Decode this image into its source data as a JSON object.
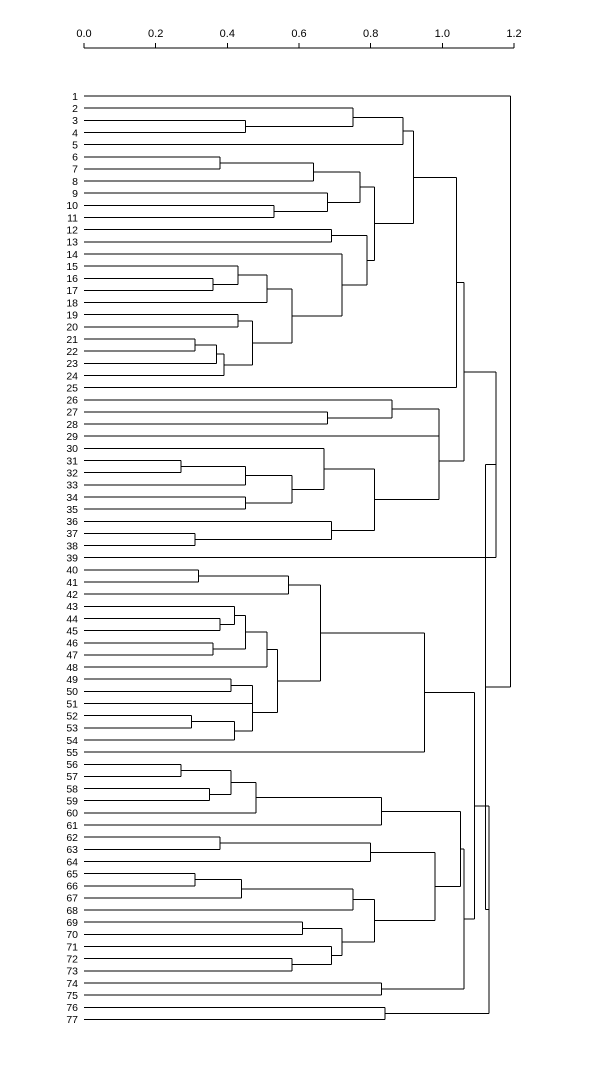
{
  "chart_data": {
    "type": "dendrogram",
    "title": "",
    "xlabel": "",
    "ylabel": "",
    "xlim": [
      0,
      1.2
    ],
    "x_ticks": [
      0.0,
      0.2,
      0.4,
      0.6,
      0.8,
      1.0,
      1.2
    ],
    "x_tick_labels": [
      "0.0",
      "0.2",
      "0.4",
      "0.6",
      "0.8",
      "1.0",
      "1.2"
    ],
    "axis_position": "top",
    "leaves": [
      "1",
      "2",
      "3",
      "4",
      "5",
      "6",
      "7",
      "8",
      "9",
      "10",
      "11",
      "12",
      "13",
      "14",
      "15",
      "16",
      "17",
      "18",
      "19",
      "20",
      "21",
      "22",
      "23",
      "24",
      "25",
      "26",
      "27",
      "28",
      "29",
      "30",
      "31",
      "32",
      "33",
      "34",
      "35",
      "36",
      "37",
      "38",
      "39",
      "40",
      "41",
      "42",
      "43",
      "44",
      "45",
      "46",
      "47",
      "48",
      "49",
      "50",
      "51",
      "52",
      "53",
      "54",
      "55",
      "56",
      "57",
      "58",
      "59",
      "60",
      "61",
      "62",
      "63",
      "64",
      "65",
      "66",
      "67",
      "68",
      "69",
      "70",
      "71",
      "72",
      "73",
      "74",
      "75",
      "76",
      "77"
    ],
    "tree": [
      1.19,
      [
        1
      ],
      [
        1.12,
        [
          1.15,
          [
            1.06,
            [
              1.04,
              [
                0.92,
                [
                  0.89,
                  [
                    0.75,
                    [
                      2
                    ],
                    [
                      0.45,
                      [
                        3
                      ],
                      [
                        4
                      ]
                    ]
                  ],
                  [
                    5
                  ]
                ],
                [
                  0.81,
                  [
                    0.77,
                    [
                      0.64,
                      [
                        0.38,
                        [
                          6
                        ],
                        [
                          7
                        ]
                      ],
                      [
                        8
                      ]
                    ],
                    [
                      0.68,
                      [
                        9
                      ],
                      [
                        0.53,
                        [
                          10
                        ],
                        [
                          11
                        ]
                      ]
                    ]
                  ],
                  [
                    0.79,
                    [
                      0.69,
                      [
                        12
                      ],
                      [
                        13
                      ]
                    ],
                    [
                      0.72,
                      [
                        14
                      ],
                      [
                        0.58,
                        [
                          0.51,
                          [
                            0.43,
                            [
                              15
                            ],
                            [
                              0.36,
                              [
                                16
                              ],
                              [
                                17
                              ]
                            ]
                          ],
                          [
                            18
                          ]
                        ],
                        [
                          0.47,
                          [
                            0.43,
                            [
                              19
                            ],
                            [
                              20
                            ]
                          ],
                          [
                            0.39,
                            [
                              0.37,
                              [
                                0.31,
                                [
                                  21
                                ],
                                [
                                  22
                                ]
                              ],
                              [
                                23
                              ]
                            ],
                            [
                              24
                            ]
                          ]
                        ]
                      ]
                    ]
                  ]
                ]
              ],
              [
                25
              ]
            ],
            [
              0.99,
              [
                0.99,
                [
                  0.86,
                  [
                    26
                  ],
                  [
                    0.68,
                    [
                      27
                    ],
                    [
                      28
                    ]
                  ]
                ],
                [
                  29
                ]
              ],
              [
                0.81,
                [
                  0.67,
                  [
                    30
                  ],
                  [
                    0.58,
                    [
                      0.45,
                      [
                        0.27,
                        [
                          31
                        ],
                        [
                          32
                        ]
                      ],
                      [
                        33
                      ]
                    ],
                    [
                      0.45,
                      [
                        34
                      ],
                      [
                        35
                      ]
                    ]
                  ]
                ],
                [
                  0.69,
                  [
                    36
                  ],
                  [
                    0.31,
                    [
                      37
                    ],
                    [
                      38
                    ]
                  ]
                ]
              ]
            ]
          ],
          [
            39
          ]
        ],
        [
          1.13,
          [
            1.09,
            [
              0.95,
              [
                0.66,
                [
                  0.57,
                  [
                    0.32,
                    [
                      40
                    ],
                    [
                      41
                    ]
                  ],
                  [
                    42
                  ]
                ],
                [
                  0.54,
                  [
                    0.51,
                    [
                      0.45,
                      [
                        0.42,
                        [
                          43
                        ],
                        [
                          0.38,
                          [
                            44
                          ],
                          [
                            45
                          ]
                        ]
                      ],
                      [
                        0.36,
                        [
                          46
                        ],
                        [
                          47
                        ]
                      ]
                    ],
                    [
                      48
                    ]
                  ],
                  [
                    0.47,
                    [
                      0.47,
                      [
                        0.41,
                        [
                          49
                        ],
                        [
                          50
                        ]
                      ],
                      [
                        51
                      ]
                    ],
                    [
                      0.42,
                      [
                        0.3,
                        [
                          52
                        ],
                        [
                          53
                        ]
                      ],
                      [
                        54
                      ]
                    ]
                  ]
                ]
              ],
              [
                55
              ]
            ],
            [
              1.06,
              [
                1.05,
                [
                  0.83,
                  [
                    0.48,
                    [
                      0.41,
                      [
                        0.27,
                        [
                          56
                        ],
                        [
                          57
                        ]
                      ],
                      [
                        0.35,
                        [
                          58
                        ],
                        [
                          59
                        ]
                      ]
                    ],
                    [
                      60
                    ]
                  ],
                  [
                    61
                  ]
                ],
                [
                  0.98,
                  [
                    0.8,
                    [
                      0.38,
                      [
                        62
                      ],
                      [
                        63
                      ]
                    ],
                    [
                      64
                    ]
                  ],
                  [
                    0.81,
                    [
                      0.75,
                      [
                        0.44,
                        [
                          0.31,
                          [
                            65
                          ],
                          [
                            66
                          ]
                        ],
                        [
                          67
                        ]
                      ],
                      [
                        68
                      ]
                    ],
                    [
                      0.72,
                      [
                        0.61,
                        [
                          69
                        ],
                        [
                          70
                        ]
                      ],
                      [
                        0.69,
                        [
                          71
                        ],
                        [
                          0.58,
                          [
                            72
                          ],
                          [
                            73
                          ]
                        ]
                      ]
                    ]
                  ]
                ]
              ],
              [
                0.83,
                [
                  74
                ],
                [
                  75
                ]
              ]
            ]
          ],
          [
            0.84,
            [
              76
            ],
            [
              77
            ]
          ]
        ]
      ]
    ]
  }
}
